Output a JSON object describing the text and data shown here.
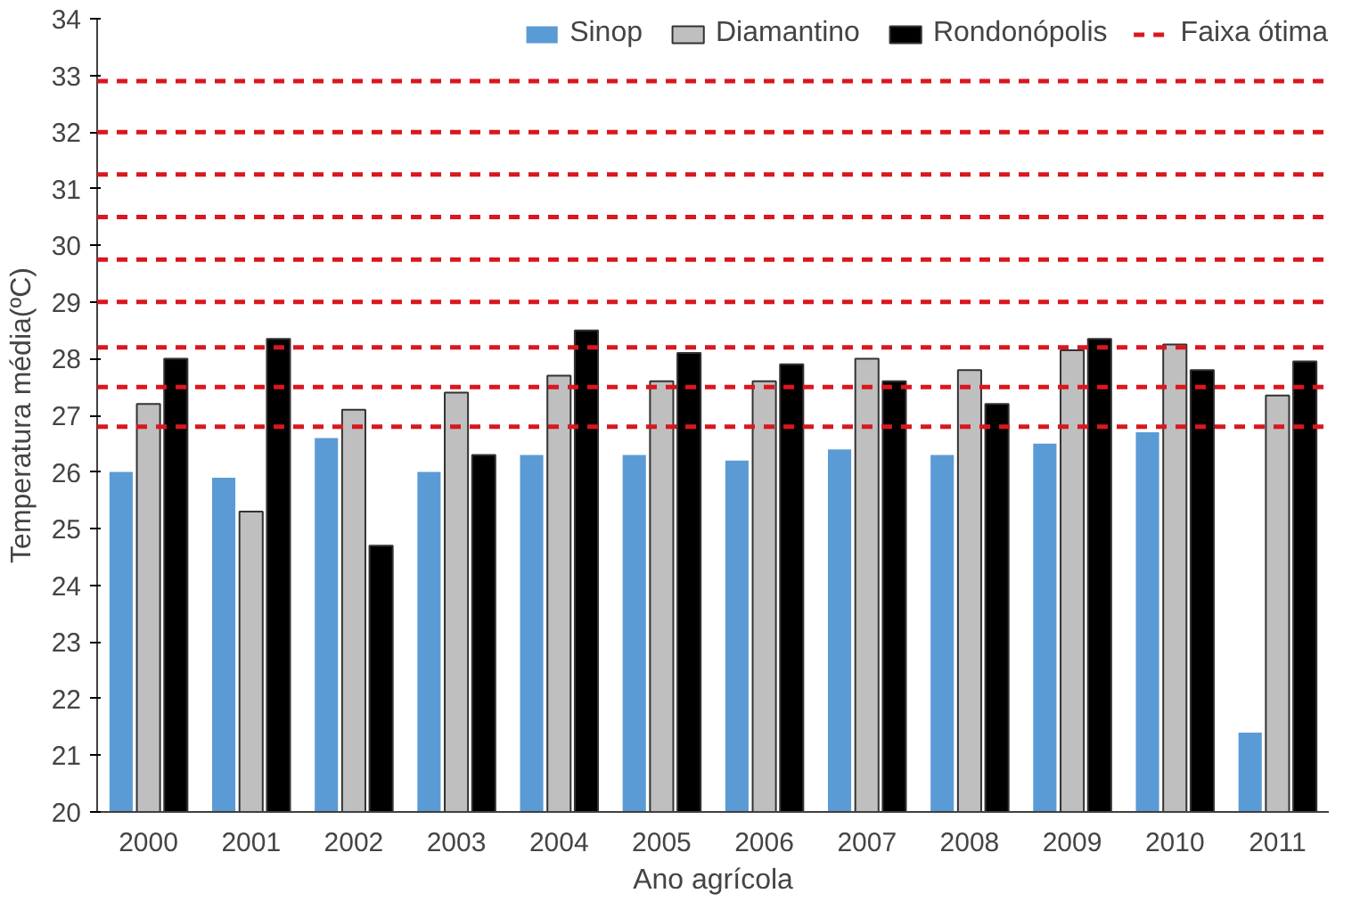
{
  "chart_data": {
    "type": "bar",
    "xlabel": "Ano agrícola",
    "ylabel": "Temperatura média(ºC)",
    "categories": [
      "2000",
      "2001",
      "2002",
      "2003",
      "2004",
      "2005",
      "2006",
      "2007",
      "2008",
      "2009",
      "2010",
      "2011"
    ],
    "series": [
      {
        "name": "Sinop",
        "color": "#5b9bd5",
        "values": [
          26.0,
          25.9,
          26.6,
          26.0,
          26.3,
          26.3,
          26.2,
          26.4,
          26.3,
          26.5,
          26.7,
          21.4
        ]
      },
      {
        "name": "Diamantino",
        "color": "#bfbfbf",
        "values": [
          27.2,
          25.3,
          27.1,
          27.4,
          27.7,
          27.6,
          27.6,
          28.0,
          27.8,
          28.15,
          28.25,
          27.35
        ]
      },
      {
        "name": "Rondonópolis",
        "color": "#000000",
        "values": [
          28.0,
          28.35,
          24.7,
          26.3,
          28.5,
          28.1,
          27.9,
          27.6,
          27.2,
          28.35,
          27.8,
          27.95
        ]
      }
    ],
    "ref_lines": [
      {
        "axis": "y",
        "value": 26.8,
        "label": "Faixa ótima",
        "color": "#d9171e",
        "line_style": "dashed"
      },
      {
        "axis": "y",
        "value": 27.5,
        "color": "#d9171e",
        "line_style": "dashed"
      },
      {
        "axis": "y",
        "value": 28.2,
        "color": "#d9171e",
        "line_style": "dashed"
      },
      {
        "axis": "y",
        "value": 29.0,
        "color": "#d9171e",
        "line_style": "dashed"
      },
      {
        "axis": "y",
        "value": 29.75,
        "color": "#d9171e",
        "line_style": "dashed"
      },
      {
        "axis": "y",
        "value": 30.5,
        "color": "#d9171e",
        "line_style": "dashed"
      },
      {
        "axis": "y",
        "value": 31.25,
        "color": "#d9171e",
        "line_style": "dashed"
      },
      {
        "axis": "y",
        "value": 32.0,
        "color": "#d9171e",
        "line_style": "dashed"
      },
      {
        "axis": "y",
        "value": 32.9,
        "color": "#d9171e",
        "line_style": "dashed"
      }
    ],
    "ylim": [
      20,
      34
    ],
    "yticks": [
      20,
      21,
      22,
      23,
      24,
      25,
      26,
      27,
      28,
      29,
      30,
      31,
      32,
      33,
      34
    ],
    "grid": false,
    "legend": "top"
  }
}
